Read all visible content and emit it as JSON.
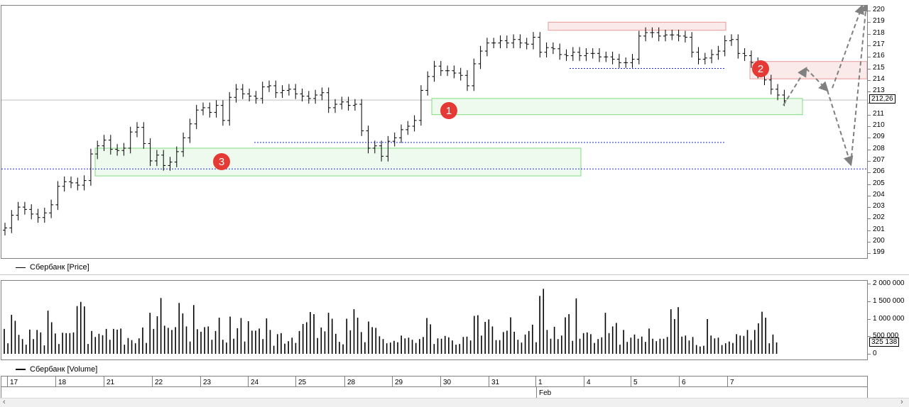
{
  "chart_data": [
    {
      "type": "bar",
      "subtype": "ohlc",
      "series_name": "Сбербанк [Price]",
      "ylim": [
        198.5,
        220.8
      ],
      "y_ticks": [
        199,
        200,
        201,
        202,
        203,
        204,
        205,
        206,
        207,
        208,
        209,
        210,
        211,
        212,
        213,
        214,
        215,
        216,
        217,
        218,
        219,
        220
      ],
      "last_price_label": "212,26",
      "last_price": 212.26,
      "close": [
        201.2,
        202.3,
        203.0,
        202.8,
        202.4,
        202.1,
        202.5,
        203.2,
        204.8,
        205.2,
        205.1,
        204.9,
        205.3,
        207.6,
        208.3,
        208.8,
        208.0,
        207.9,
        208.1,
        209.5,
        209.9,
        208.5,
        207.0,
        207.5,
        206.6,
        206.9,
        207.8,
        209.0,
        210.2,
        211.4,
        211.6,
        211.2,
        211.8,
        210.5,
        212.5,
        213.2,
        212.8,
        212.6,
        212.4,
        213.4,
        213.5,
        212.9,
        213.1,
        213.2,
        212.8,
        212.6,
        212.4,
        212.7,
        212.9,
        211.6,
        211.9,
        212.1,
        211.8,
        211.9,
        209.6,
        208.1,
        208.3,
        207.4,
        208.7,
        209.0,
        209.7,
        210.0,
        210.5,
        213.1,
        214.3,
        215.2,
        214.8,
        214.8,
        214.6,
        214.4,
        213.5,
        215.4,
        216.5,
        217.2,
        217.2,
        217.4,
        217.2,
        217.5,
        217.2,
        217.1,
        217.7,
        216.4,
        216.8,
        216.7,
        216.2,
        216.1,
        216.4,
        216.1,
        216.3,
        216.3,
        216.0,
        216.0,
        215.8,
        215.5,
        215.5,
        215.8,
        217.8,
        218.1,
        218.1,
        217.8,
        217.9,
        217.9,
        217.8,
        217.7,
        216.4,
        215.8,
        215.9,
        216.2,
        216.5,
        217.4,
        217.5,
        216.3,
        216.1,
        215.5,
        214.6,
        214.0,
        213.2,
        212.7,
        212.2
      ],
      "extra_ticks": "high/low ranges approximately ±0.5 around closes",
      "annotations": [
        {
          "label": "1",
          "kind": "support-zone",
          "y_range": [
            211.0,
            212.4
          ]
        },
        {
          "label": "2",
          "kind": "resistance-zone",
          "y_range": [
            214.1,
            215.6
          ]
        },
        {
          "label": "3",
          "kind": "support-zone",
          "y_range": [
            205.7,
            208.1
          ]
        },
        {
          "kind": "resistance-zone",
          "y_range": [
            218.3,
            219.0
          ]
        },
        {
          "kind": "dotted-level",
          "y": 206.3
        },
        {
          "kind": "dotted-level",
          "y": 208.6
        },
        {
          "kind": "dotted-level",
          "y": 215.0
        }
      ],
      "forecast_path": [
        {
          "x": "after 7",
          "y": 211.8
        },
        {
          "x": "after 7",
          "y": 215.0
        },
        {
          "x": "after 7",
          "y": 213.1
        },
        {
          "x": "after 7",
          "y": 206.7
        },
        {
          "x": "after 7",
          "y": 220.6
        }
      ],
      "forecast_path_2": [
        {
          "x": "after 7",
          "y": 213.3
        },
        {
          "x": "after 7",
          "y": 220.4
        }
      ]
    },
    {
      "type": "bar",
      "series_name": "Сбербанк [Volume]",
      "ylim": [
        -300000,
        2150000
      ],
      "y_ticks": [
        {
          "v": 0,
          "label": "0"
        },
        {
          "v": 500000,
          "label": "500 000"
        },
        {
          "v": 1000000,
          "label": "1 000 000"
        },
        {
          "v": 1500000,
          "label": "1 500 000"
        },
        {
          "v": 2000000,
          "label": "2 000 000"
        }
      ],
      "last_value_label": "325 138",
      "values": [
        710000,
        300000,
        1110000,
        940000,
        540000,
        420000,
        260000,
        690000,
        420000,
        680000,
        610000,
        240000,
        1230000,
        900000,
        580000,
        280000,
        600000,
        590000,
        590000,
        610000,
        1360000,
        1480000,
        1350000,
        280000,
        650000,
        480000,
        570000,
        530000,
        710000,
        400000,
        710000,
        690000,
        720000,
        260000,
        450000,
        390000,
        300000,
        440000,
        750000,
        310000,
        1170000,
        710000,
        1070000,
        1590000,
        800000,
        740000,
        680000,
        760000,
        1450000,
        1150000,
        780000,
        350000,
        1390000,
        700000,
        630000,
        760000,
        780000,
        400000,
        650000,
        1030000,
        400000,
        320000,
        1060000,
        430000,
        730000,
        1020000,
        350000,
        930000,
        660000,
        660000,
        720000,
        420000,
        1010000,
        680000,
        230000,
        560000,
        590000,
        290000,
        360000,
        460000,
        310000,
        650000,
        850000,
        900000,
        1190000,
        1130000,
        450000,
        750000,
        640000,
        1170000,
        1000000,
        570000,
        340000,
        270000,
        1000000,
        670000,
        1270000,
        1030000,
        620000,
        330000,
        920000,
        760000,
        740000,
        500000,
        420000,
        300000,
        320000,
        370000,
        330000,
        520000,
        440000,
        460000,
        400000,
        310000,
        420000,
        480000,
        1020000,
        840000,
        280000,
        440000,
        430000,
        510000,
        470000,
        380000,
        260000,
        280000,
        480000,
        490000,
        380000,
        1080000,
        1100000,
        520000,
        910000,
        980000,
        780000,
        390000,
        390000,
        620000,
        660000,
        1040000,
        630000,
        400000,
        320000,
        550000,
        650000,
        830000,
        330000,
        1650000,
        1850000,
        680000,
        430000,
        770000,
        420000,
        520000,
        1040000,
        1130000,
        370000,
        1580000,
        430000,
        590000,
        610000,
        560000,
        310000,
        420000,
        470000,
        1170000,
        590000,
        780000,
        880000,
        260000,
        680000,
        340000,
        460000,
        550000,
        430000,
        490000,
        340000,
        720000,
        430000,
        360000,
        430000,
        430000,
        480000,
        1270000,
        990000,
        1330000,
        490000,
        520000,
        380000,
        480000,
        250000,
        210000,
        230000,
        990000,
        520000,
        440000,
        460000,
        250000,
        300000,
        350000,
        310000,
        560000,
        520000,
        510000,
        680000,
        390000,
        680000,
        870000,
        1200000,
        1030000,
        300000,
        550000,
        325138
      ]
    }
  ],
  "legend": {
    "price": "Сбербанк [Price]",
    "volume": "Сбербанк [Volume]"
  },
  "date_axis": {
    "day_labels": [
      "17",
      "18",
      "21",
      "22",
      "23",
      "24",
      "25",
      "28",
      "29",
      "30",
      "31",
      "1",
      "4",
      "5",
      "6",
      "7"
    ],
    "month_label": "Feb"
  },
  "colors": {
    "support": "#7fdc7f",
    "support_fill": "#eefaee",
    "resistance": "#e79999",
    "resistance_fill": "#fbeaea",
    "level": "#1f2fd6",
    "arrow": "#808080",
    "callout": "#e53935"
  }
}
